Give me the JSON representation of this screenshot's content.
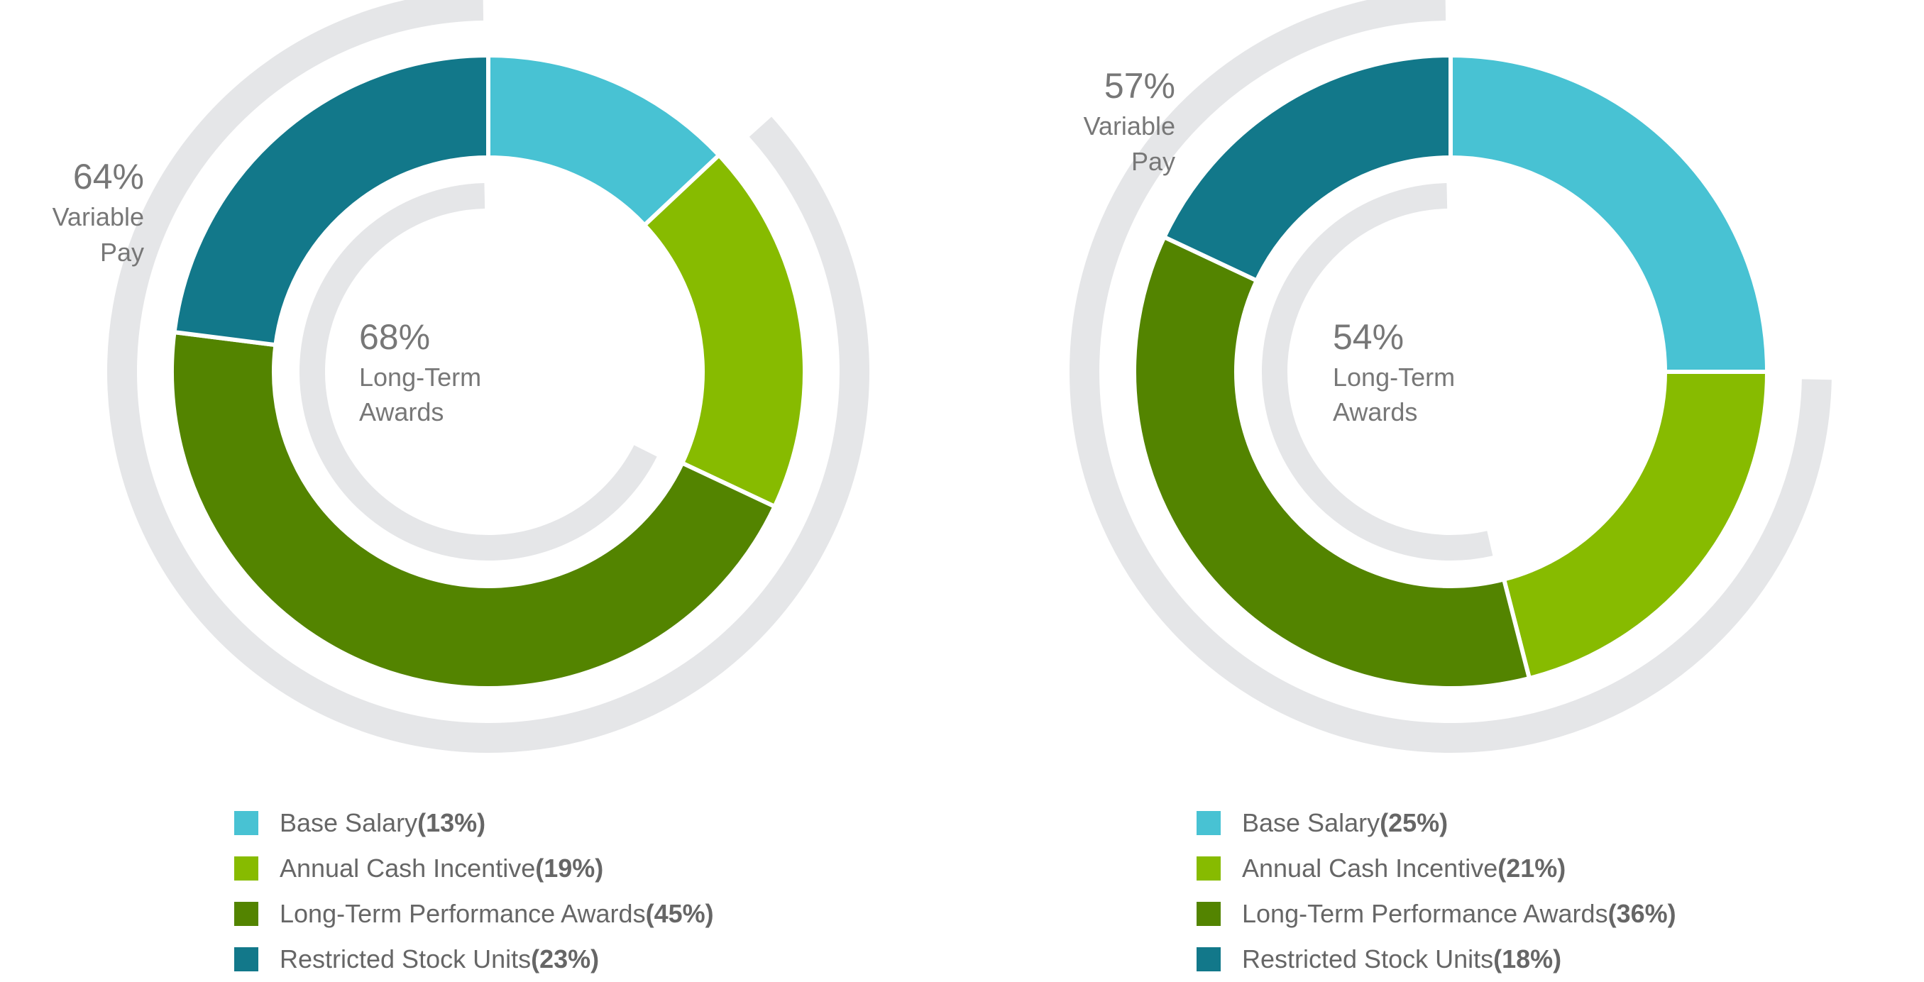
{
  "colors": {
    "base_salary": "#48C2D3",
    "annual_cash_incentive": "#87BB00",
    "long_term_performance_awards": "#538400",
    "restricted_stock_units": "#12788A",
    "track": "#E5E6E8"
  },
  "charts": [
    {
      "outer_label": {
        "pct": "64%",
        "line1": "Variable",
        "line2": "Pay"
      },
      "center_label": {
        "pct": "68%",
        "line1": "Long-Term",
        "line2": "Awards"
      },
      "legend": [
        {
          "label": "Base Salary ",
          "value": "(13%)"
        },
        {
          "label": "Annual Cash Incentive ",
          "value": "(19%)"
        },
        {
          "label": "Long-Term Performance Awards ",
          "value": "(45%)"
        },
        {
          "label": "Restricted Stock Units ",
          "value": "(23%)"
        }
      ]
    },
    {
      "outer_label": {
        "pct": "57%",
        "line1": "Variable",
        "line2": "Pay"
      },
      "center_label": {
        "pct": "54%",
        "line1": "Long-Term",
        "line2": "Awards"
      },
      "legend": [
        {
          "label": "Base Salary ",
          "value": "(25%)"
        },
        {
          "label": "Annual Cash Incentive ",
          "value": "(21%)"
        },
        {
          "label": "Long-Term Performance Awards ",
          "value": "(36%)"
        },
        {
          "label": "Restricted Stock Units ",
          "value": "(18%)"
        }
      ]
    }
  ],
  "chart_data": [
    {
      "type": "pie",
      "categories": [
        "Base Salary",
        "Annual Cash Incentive",
        "Long-Term Performance Awards",
        "Restricted Stock Units"
      ],
      "values": [
        13,
        19,
        45,
        23
      ],
      "variable_pay_percent": 64,
      "long_term_awards_percent": 68
    },
    {
      "type": "pie",
      "categories": [
        "Base Salary",
        "Annual Cash Incentive",
        "Long-Term Performance Awards",
        "Restricted Stock Units"
      ],
      "values": [
        25,
        21,
        36,
        18
      ],
      "variable_pay_percent": 57,
      "long_term_awards_percent": 54
    }
  ]
}
